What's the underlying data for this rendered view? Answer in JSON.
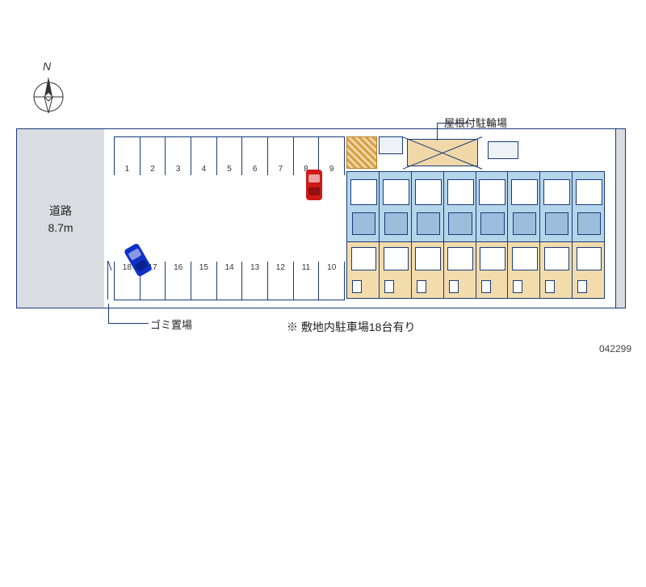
{
  "compass": {
    "north": "N"
  },
  "road": {
    "line1": "道路",
    "line2": "8.7m"
  },
  "labels": {
    "bike_shelter": "屋根付駐輪場",
    "garbage": "ゴミ置場",
    "parking_note": "※ 敷地内駐車場18台有り",
    "id": "042299"
  },
  "parking": {
    "top_row": [
      "1",
      "2",
      "3",
      "4",
      "5",
      "6",
      "7",
      "8",
      "9"
    ],
    "bottom_row": [
      "18",
      "17",
      "16",
      "15",
      "14",
      "13",
      "12",
      "11",
      "10"
    ]
  },
  "building": {
    "unit_count": 8
  },
  "colors": {
    "border": "#1a3a7a",
    "road_bg": "#d9dde2",
    "unit_top": "#b5d5ea",
    "unit_btm": "#f3dcac",
    "car_red": "#d01818",
    "car_blue": "#1030c8",
    "hatch": "#d8a048"
  }
}
